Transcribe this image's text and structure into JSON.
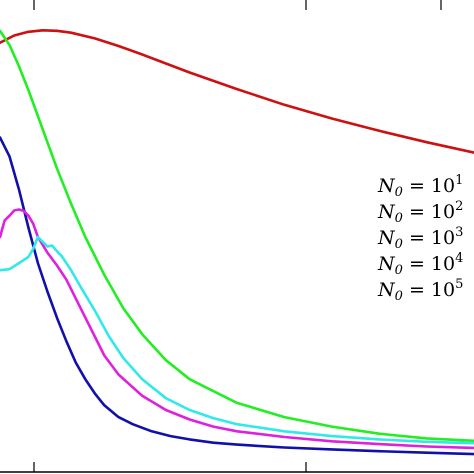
{
  "chart_data": {
    "type": "line",
    "title": "",
    "xlabel": "",
    "ylabel": "",
    "xlim": [
      0,
      1
    ],
    "ylim": [
      0,
      1
    ],
    "grid": false,
    "legend_placement": "right",
    "axis_color": "#000000",
    "series": [
      {
        "name": "N_0 = 10^1",
        "legend": {
          "base": "N",
          "sub": "0",
          "eq": " = 10",
          "sup": "1"
        },
        "color": "#cc1111",
        "x": [
          0.0,
          0.03,
          0.06,
          0.09,
          0.12,
          0.15,
          0.2,
          0.25,
          0.3,
          0.4,
          0.5,
          0.6,
          0.7,
          0.8,
          0.9,
          1.0
        ],
        "y": [
          0.91,
          0.925,
          0.933,
          0.936,
          0.935,
          0.931,
          0.919,
          0.903,
          0.885,
          0.847,
          0.812,
          0.779,
          0.75,
          0.724,
          0.7,
          0.678
        ]
      },
      {
        "name": "N_0 = 10^2",
        "legend": {
          "base": "N",
          "sub": "0",
          "eq": " = 10",
          "sup": "2"
        },
        "color": "#22ee22",
        "x": [
          0.0,
          0.02,
          0.04,
          0.06,
          0.08,
          0.1,
          0.12,
          0.15,
          0.18,
          0.22,
          0.26,
          0.3,
          0.35,
          0.4,
          0.5,
          0.6,
          0.7,
          0.8,
          0.9,
          1.0
        ],
        "y": [
          0.935,
          0.905,
          0.86,
          0.81,
          0.755,
          0.7,
          0.645,
          0.57,
          0.5,
          0.42,
          0.35,
          0.295,
          0.24,
          0.2,
          0.15,
          0.12,
          0.1,
          0.085,
          0.075,
          0.07
        ]
      },
      {
        "name": "N_0 = 10^3",
        "legend": {
          "base": "N",
          "sub": "0",
          "eq": " = 10",
          "sup": "3"
        },
        "color": "#1111aa",
        "x": [
          0.0,
          0.02,
          0.04,
          0.06,
          0.08,
          0.1,
          0.12,
          0.14,
          0.16,
          0.18,
          0.2,
          0.22,
          0.25,
          0.28,
          0.32,
          0.36,
          0.4,
          0.45,
          0.5,
          0.6,
          0.7,
          0.8,
          0.9,
          1.0
        ],
        "y": [
          0.71,
          0.67,
          0.6,
          0.52,
          0.445,
          0.385,
          0.33,
          0.28,
          0.235,
          0.2,
          0.17,
          0.145,
          0.12,
          0.105,
          0.09,
          0.08,
          0.073,
          0.066,
          0.062,
          0.056,
          0.052,
          0.048,
          0.045,
          0.042
        ]
      },
      {
        "name": "N_0 = 10^4",
        "legend": {
          "base": "N",
          "sub": "0",
          "eq": " = 10",
          "sup": "4"
        },
        "color": "#dd22dd",
        "x": [
          0.0,
          0.01,
          0.02,
          0.03,
          0.04,
          0.05,
          0.06,
          0.07,
          0.08,
          0.1,
          0.12,
          0.14,
          0.16,
          0.18,
          0.2,
          0.22,
          0.25,
          0.3,
          0.35,
          0.4,
          0.45,
          0.5,
          0.6,
          0.7,
          0.8,
          0.9,
          1.0
        ],
        "y": [
          0.5,
          0.535,
          0.545,
          0.556,
          0.558,
          0.555,
          0.545,
          0.528,
          0.5,
          0.467,
          0.44,
          0.41,
          0.37,
          0.33,
          0.29,
          0.25,
          0.21,
          0.165,
          0.135,
          0.115,
          0.1,
          0.09,
          0.078,
          0.069,
          0.063,
          0.058,
          0.055
        ]
      },
      {
        "name": "N_0 = 10^5",
        "legend": {
          "base": "N",
          "sub": "0",
          "eq": " = 10",
          "sup": "5"
        },
        "color": "#33e8e8",
        "x": [
          0.0,
          0.02,
          0.04,
          0.06,
          0.07,
          0.08,
          0.09,
          0.1,
          0.11,
          0.12,
          0.13,
          0.15,
          0.17,
          0.2,
          0.23,
          0.26,
          0.3,
          0.35,
          0.4,
          0.45,
          0.5,
          0.6,
          0.7,
          0.8,
          0.9,
          1.0
        ],
        "y": [
          0.43,
          0.432,
          0.445,
          0.458,
          0.475,
          0.5,
          0.49,
          0.48,
          0.482,
          0.47,
          0.46,
          0.43,
          0.395,
          0.345,
          0.29,
          0.245,
          0.2,
          0.16,
          0.135,
          0.118,
          0.105,
          0.09,
          0.08,
          0.073,
          0.068,
          0.065
        ]
      }
    ]
  }
}
